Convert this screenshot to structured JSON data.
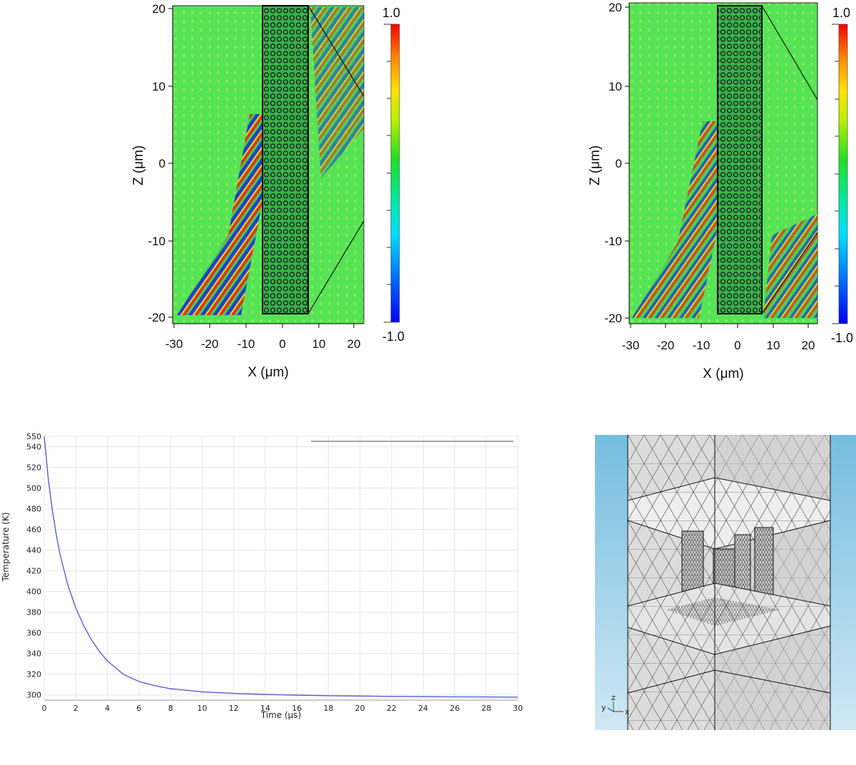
{
  "field_plots": {
    "left": {
      "xlabel": "X (μm)",
      "ylabel": "Z (μm)",
      "xticks": [
        "-30",
        "-20",
        "-10",
        "0",
        "10",
        "20"
      ],
      "yticks": [
        "20",
        "10",
        "0",
        "-10",
        "-20"
      ],
      "colorbar_max": "1.0",
      "colorbar_min": "-1.0"
    },
    "right": {
      "xlabel": "X (μm)",
      "ylabel": "Z (μm)",
      "xticks": [
        "-30",
        "-20",
        "-10",
        "0",
        "10",
        "20"
      ],
      "yticks": [
        "20",
        "10",
        "0",
        "-10",
        "-20"
      ],
      "colorbar_max": "1.0",
      "colorbar_min": "-1.0"
    }
  },
  "mesh_view": {
    "triad": {
      "y": "y",
      "z": "z",
      "x": "x"
    },
    "colors": {
      "background": "#7ec3e2",
      "mesh_line": "#1a1a1a",
      "solid": "#e6e6e6"
    }
  },
  "chart_data": {
    "type": "line",
    "title": "",
    "xlabel": "Time (μs)",
    "ylabel": "Temperature (K)",
    "xlim": [
      0,
      30
    ],
    "ylim": [
      295,
      550
    ],
    "xticks": [
      0,
      2,
      4,
      6,
      8,
      10,
      12,
      14,
      16,
      18,
      20,
      22,
      24,
      26,
      28,
      30
    ],
    "yticks": [
      300,
      320,
      340,
      360,
      380,
      400,
      420,
      440,
      460,
      480,
      500,
      520,
      540,
      550
    ],
    "grid": true,
    "series": [
      {
        "color": "#5b5bd6",
        "x": [
          0,
          0.25,
          0.5,
          0.75,
          1,
          1.5,
          2,
          2.5,
          3,
          3.5,
          4,
          5,
          6,
          7,
          8,
          10,
          12,
          14,
          16,
          18,
          20,
          22,
          24,
          26,
          28,
          30
        ],
        "y": [
          550,
          510,
          480,
          456,
          436,
          406,
          384,
          367,
          353,
          342,
          333,
          320,
          313,
          309,
          306,
          303,
          301.5,
          300.5,
          299.8,
          299.3,
          298.9,
          298.6,
          298.4,
          298.2,
          298.0,
          297.9
        ]
      }
    ]
  }
}
